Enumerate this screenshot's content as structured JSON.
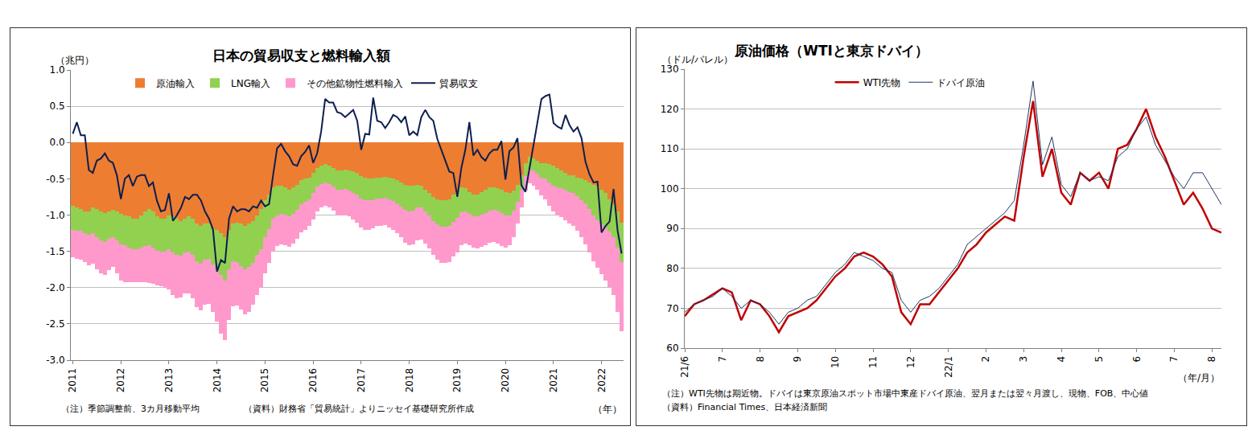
{
  "chart_data": [
    {
      "type": "bar",
      "stacked": true,
      "title": "日本の貿易収支と燃料輸入額",
      "ylabel": "（兆円）",
      "xlabel": "（年）",
      "notes": [
        "（注）季節調整前、3カ月移動平均",
        "（資料）財務省「貿易統計」よりニッセイ基礎研究所作成"
      ],
      "categories": [
        "2011",
        null,
        null,
        null,
        null,
        null,
        null,
        null,
        null,
        null,
        null,
        null,
        "2012",
        null,
        null,
        null,
        null,
        null,
        null,
        null,
        null,
        null,
        null,
        null,
        "2013",
        null,
        null,
        null,
        null,
        null,
        null,
        null,
        null,
        null,
        null,
        null,
        "2014",
        null,
        null,
        null,
        null,
        null,
        null,
        null,
        null,
        null,
        null,
        null,
        "2015",
        null,
        null,
        null,
        null,
        null,
        null,
        null,
        null,
        null,
        null,
        null,
        "2016",
        null,
        null,
        null,
        null,
        null,
        null,
        null,
        null,
        null,
        null,
        null,
        "2017",
        null,
        null,
        null,
        null,
        null,
        null,
        null,
        null,
        null,
        null,
        null,
        "2018",
        null,
        null,
        null,
        null,
        null,
        null,
        null,
        null,
        null,
        null,
        null,
        "2019",
        null,
        null,
        null,
        null,
        null,
        null,
        null,
        null,
        null,
        null,
        null,
        "2020",
        null,
        null,
        null,
        null,
        null,
        null,
        null,
        null,
        null,
        null,
        null,
        "2021",
        null,
        null,
        null,
        null,
        null,
        null,
        null,
        null,
        null,
        null,
        null,
        "2022",
        null,
        null,
        null,
        null,
        null
      ],
      "series": [
        {
          "name": "原油輸入",
          "type": "bar",
          "color": "#ED7D31",
          "values": [
            -0.87,
            -0.9,
            -0.92,
            -0.95,
            -0.95,
            -0.9,
            -0.92,
            -0.95,
            -0.97,
            -0.95,
            -0.93,
            -0.95,
            -0.98,
            -1.0,
            -1.02,
            -1.05,
            -1.05,
            -1.0,
            -0.95,
            -0.92,
            -0.95,
            -1.02,
            -1.05,
            -1.05,
            -1.0,
            -1.02,
            -1.05,
            -1.08,
            -1.05,
            -1.02,
            -1.05,
            -1.12,
            -1.15,
            -1.12,
            -1.12,
            -1.18,
            -1.2,
            -1.25,
            -1.3,
            -1.2,
            -1.12,
            -1.1,
            -1.12,
            -1.15,
            -1.12,
            -1.08,
            -1.0,
            -0.92,
            -0.8,
            -0.72,
            -0.62,
            -0.6,
            -0.6,
            -0.62,
            -0.65,
            -0.62,
            -0.58,
            -0.52,
            -0.5,
            -0.48,
            -0.42,
            -0.35,
            -0.32,
            -0.3,
            -0.32,
            -0.35,
            -0.38,
            -0.38,
            -0.37,
            -0.38,
            -0.4,
            -0.42,
            -0.46,
            -0.48,
            -0.5,
            -0.5,
            -0.48,
            -0.48,
            -0.47,
            -0.48,
            -0.5,
            -0.52,
            -0.55,
            -0.58,
            -0.6,
            -0.6,
            -0.58,
            -0.6,
            -0.65,
            -0.7,
            -0.75,
            -0.78,
            -0.8,
            -0.8,
            -0.78,
            -0.72,
            -0.68,
            -0.62,
            -0.63,
            -0.68,
            -0.72,
            -0.72,
            -0.68,
            -0.65,
            -0.62,
            -0.62,
            -0.63,
            -0.65,
            -0.68,
            -0.7,
            -0.66,
            -0.58,
            -0.45,
            -0.28,
            -0.2,
            -0.22,
            -0.25,
            -0.28,
            -0.28,
            -0.3,
            -0.32,
            -0.35,
            -0.38,
            -0.42,
            -0.45,
            -0.45,
            -0.48,
            -0.5,
            -0.52,
            -0.55,
            -0.58,
            -0.6,
            -0.65,
            -0.7,
            -0.78,
            -0.85,
            -0.95,
            -1.1
          ]
        },
        {
          "name": "LNG輸入",
          "type": "bar",
          "color": "#92D050",
          "values": [
            -0.33,
            -0.32,
            -0.3,
            -0.3,
            -0.32,
            -0.35,
            -0.38,
            -0.4,
            -0.4,
            -0.38,
            -0.37,
            -0.4,
            -0.42,
            -0.42,
            -0.43,
            -0.42,
            -0.42,
            -0.45,
            -0.48,
            -0.5,
            -0.5,
            -0.47,
            -0.45,
            -0.45,
            -0.47,
            -0.5,
            -0.5,
            -0.48,
            -0.47,
            -0.48,
            -0.5,
            -0.52,
            -0.52,
            -0.5,
            -0.48,
            -0.5,
            -0.55,
            -0.58,
            -0.6,
            -0.55,
            -0.52,
            -0.55,
            -0.58,
            -0.6,
            -0.6,
            -0.58,
            -0.55,
            -0.55,
            -0.5,
            -0.47,
            -0.43,
            -0.4,
            -0.38,
            -0.37,
            -0.37,
            -0.36,
            -0.35,
            -0.33,
            -0.32,
            -0.3,
            -0.28,
            -0.26,
            -0.25,
            -0.25,
            -0.25,
            -0.26,
            -0.27,
            -0.27,
            -0.27,
            -0.28,
            -0.29,
            -0.3,
            -0.31,
            -0.31,
            -0.3,
            -0.29,
            -0.29,
            -0.29,
            -0.29,
            -0.3,
            -0.31,
            -0.32,
            -0.33,
            -0.35,
            -0.35,
            -0.34,
            -0.32,
            -0.3,
            -0.3,
            -0.31,
            -0.33,
            -0.35,
            -0.36,
            -0.36,
            -0.37,
            -0.37,
            -0.36,
            -0.34,
            -0.32,
            -0.3,
            -0.3,
            -0.3,
            -0.31,
            -0.32,
            -0.32,
            -0.31,
            -0.31,
            -0.32,
            -0.32,
            -0.3,
            -0.28,
            -0.24,
            -0.2,
            -0.18,
            -0.17,
            -0.17,
            -0.18,
            -0.2,
            -0.22,
            -0.25,
            -0.27,
            -0.27,
            -0.25,
            -0.23,
            -0.23,
            -0.24,
            -0.26,
            -0.29,
            -0.32,
            -0.37,
            -0.42,
            -0.47,
            -0.48,
            -0.48,
            -0.45,
            -0.45,
            -0.5,
            -0.55
          ]
        },
        {
          "name": "その他鉱物性燃料輸入",
          "type": "bar",
          "color": "#FF99CC",
          "values": [
            -0.38,
            -0.38,
            -0.4,
            -0.4,
            -0.42,
            -0.42,
            -0.45,
            -0.45,
            -0.45,
            -0.43,
            -0.42,
            -0.45,
            -0.5,
            -0.5,
            -0.48,
            -0.45,
            -0.45,
            -0.48,
            -0.5,
            -0.52,
            -0.5,
            -0.48,
            -0.48,
            -0.5,
            -0.55,
            -0.58,
            -0.6,
            -0.58,
            -0.56,
            -0.58,
            -0.6,
            -0.63,
            -0.64,
            -0.62,
            -0.62,
            -0.66,
            -0.72,
            -0.8,
            -0.82,
            -0.7,
            -0.62,
            -0.6,
            -0.6,
            -0.62,
            -0.62,
            -0.58,
            -0.55,
            -0.52,
            -0.5,
            -0.47,
            -0.45,
            -0.43,
            -0.42,
            -0.42,
            -0.42,
            -0.41,
            -0.4,
            -0.39,
            -0.38,
            -0.37,
            -0.36,
            -0.34,
            -0.33,
            -0.32,
            -0.32,
            -0.33,
            -0.34,
            -0.35,
            -0.35,
            -0.36,
            -0.37,
            -0.38,
            -0.4,
            -0.41,
            -0.4,
            -0.39,
            -0.38,
            -0.38,
            -0.38,
            -0.39,
            -0.4,
            -0.41,
            -0.43,
            -0.45,
            -0.46,
            -0.46,
            -0.45,
            -0.44,
            -0.44,
            -0.45,
            -0.47,
            -0.49,
            -0.5,
            -0.5,
            -0.5,
            -0.48,
            -0.47,
            -0.45,
            -0.44,
            -0.43,
            -0.43,
            -0.44,
            -0.45,
            -0.45,
            -0.44,
            -0.44,
            -0.45,
            -0.46,
            -0.45,
            -0.42,
            -0.36,
            -0.3,
            -0.24,
            -0.2,
            -0.19,
            -0.2,
            -0.22,
            -0.25,
            -0.28,
            -0.32,
            -0.36,
            -0.38,
            -0.4,
            -0.42,
            -0.44,
            -0.46,
            -0.48,
            -0.52,
            -0.56,
            -0.6,
            -0.64,
            -0.66,
            -0.68,
            -0.72,
            -0.76,
            -0.8,
            -0.88,
            -0.95
          ]
        },
        {
          "name": "貿易収支",
          "type": "line",
          "color": "#0D1F4F",
          "values": [
            0.12,
            0.28,
            0.1,
            0.1,
            -0.38,
            -0.42,
            -0.25,
            -0.22,
            -0.15,
            -0.25,
            -0.28,
            -0.45,
            -0.78,
            -0.5,
            -0.45,
            -0.6,
            -0.47,
            -0.45,
            -0.45,
            -0.6,
            -0.55,
            -0.8,
            -0.95,
            -0.93,
            -0.7,
            -1.08,
            -1,
            -0.9,
            -0.75,
            -0.78,
            -0.72,
            -0.72,
            -0.8,
            -0.95,
            -1.05,
            -1.2,
            -1.78,
            -1.62,
            -1.66,
            -1.05,
            -0.88,
            -0.95,
            -0.92,
            -0.92,
            -0.95,
            -0.88,
            -0.9,
            -0.8,
            -0.88,
            -0.85,
            -0.45,
            -0.08,
            -0.02,
            -0.12,
            -0.19,
            -0.3,
            -0.32,
            -0.19,
            -0.13,
            -0.04,
            -0.28,
            -0.15,
            0.15,
            0.6,
            0.55,
            0.55,
            0.42,
            0.4,
            0.35,
            0.4,
            0.45,
            0.3,
            -0.1,
            0.12,
            0.11,
            0.62,
            0.3,
            0.28,
            0.2,
            0.28,
            0.38,
            0.35,
            0.28,
            0.36,
            0.1,
            0.15,
            0.1,
            0.35,
            0.45,
            0.35,
            0.3,
            0.05,
            -0.1,
            -0.25,
            -0.4,
            -0.42,
            -0.75,
            -0.35,
            -0.1,
            0.28,
            -0.18,
            -0.1,
            -0.2,
            -0.25,
            -0.15,
            -0.1,
            -0.1,
            0.02,
            -0.51,
            -0.12,
            -0.07,
            0.06,
            -0.59,
            -0.68,
            -0.36,
            0,
            0.31,
            0.6,
            0.64,
            0.66,
            0.27,
            0.22,
            0.19,
            0.38,
            0.24,
            0.15,
            0.21,
            0.06,
            -0.27,
            -0.44,
            -0.55,
            -0.54,
            -1.24,
            -1.15,
            -1.09,
            -0.64,
            -1.21,
            -1.53
          ]
        }
      ],
      "ylim": [
        -3,
        1
      ],
      "yticks": [
        {
          "value": 1,
          "label": "1.0"
        },
        0.5,
        {
          "value": 0,
          "label": "0.0"
        },
        -0.5,
        {
          "value": -1,
          "label": "-1.0"
        },
        -1.5,
        {
          "value": -2,
          "label": "-2.0"
        },
        -2.5,
        {
          "value": -3,
          "label": "-3.0"
        }
      ],
      "grid": true,
      "legend": "top"
    },
    {
      "type": "line",
      "title": "原油価格（WTIと東京ドバイ）",
      "ylabel": "（ドル/バレル）",
      "xlabel": "（年/月）",
      "notes": [
        "（注）WTI先物は期近物。ドバイは東京原油スポット市場中東産ドバイ原油、翌月または翌々月渡し、現物、FOB、中心値",
        "（資料）Financial Times、日本経済新聞"
      ],
      "categories": [
        "21/6",
        null,
        null,
        null,
        "7",
        null,
        null,
        null,
        "8",
        null,
        null,
        null,
        "9",
        null,
        null,
        null,
        "10",
        null,
        null,
        null,
        "11",
        null,
        null,
        null,
        "12",
        null,
        null,
        null,
        "22/1",
        null,
        null,
        null,
        "2",
        null,
        null,
        null,
        "3",
        null,
        null,
        null,
        "4",
        null,
        null,
        null,
        "5",
        null,
        null,
        null,
        "6",
        null,
        null,
        null,
        "7",
        null,
        null,
        null,
        "8",
        null
      ],
      "series": [
        {
          "name": "WTI先物",
          "color": "#C00000",
          "values": [
            68,
            71,
            72,
            73.5,
            75,
            74,
            67,
            72,
            71,
            68,
            64,
            68,
            69,
            70,
            72,
            75,
            78,
            80,
            83,
            84,
            83,
            81,
            78,
            69,
            66,
            71,
            71,
            74,
            77,
            80,
            84,
            86,
            89,
            91,
            93,
            92,
            108,
            122,
            103,
            110,
            99,
            96,
            104,
            102,
            104,
            100,
            110,
            111,
            115,
            120,
            113,
            108,
            102,
            96,
            99,
            95,
            90,
            89
          ]
        },
        {
          "name": "ドバイ原油",
          "color": "#1F3864",
          "values": [
            69,
            71,
            72,
            73,
            75,
            73,
            70,
            72,
            71,
            69,
            66,
            69,
            70,
            72,
            73,
            76,
            79,
            81,
            84,
            83,
            82,
            80,
            79,
            72,
            69,
            72,
            73,
            75,
            78,
            81,
            86,
            88,
            90,
            92,
            94,
            97,
            111,
            127,
            106,
            113,
            101,
            98,
            104,
            102,
            103,
            102,
            108,
            110,
            115,
            118,
            111,
            107,
            103,
            100,
            104,
            104,
            100,
            96
          ]
        }
      ],
      "ylim": [
        60,
        130
      ],
      "yticks": [
        60,
        70,
        80,
        90,
        100,
        110,
        120,
        130
      ],
      "grid": true,
      "legend": "top"
    }
  ]
}
